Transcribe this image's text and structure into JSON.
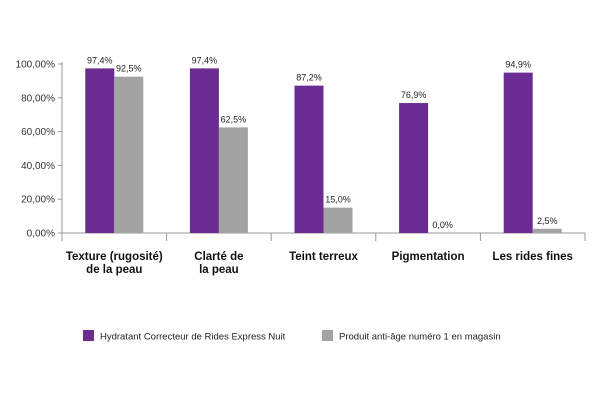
{
  "chart_data": {
    "type": "bar",
    "categories": [
      [
        "Texture (rugosité)",
        "de la peau"
      ],
      [
        "Clarté de",
        "la peau"
      ],
      [
        "Teint terreux"
      ],
      [
        "Pigmentation"
      ],
      [
        "Les rides fines"
      ]
    ],
    "series": [
      {
        "name": "Hydratant Correcteur de Rides Express Nuit",
        "color": "#6a2c91",
        "values": [
          97.4,
          97.4,
          87.2,
          76.9,
          94.9
        ],
        "labels": [
          "97,4%",
          "97,4%",
          "87,2%",
          "76,9%",
          "94,9%"
        ]
      },
      {
        "name": "Produit anti-âge numéro 1 en magasin",
        "color": "#a3a3a3",
        "values": [
          92.5,
          62.5,
          15.0,
          0.0,
          2.5
        ],
        "labels": [
          "92,5%",
          "62,5%",
          "15,0%",
          "0,0%",
          "2,5%"
        ]
      }
    ],
    "ylim": [
      0,
      100
    ],
    "yticks": [
      {
        "value": 0,
        "label": "0,00%"
      },
      {
        "value": 20,
        "label": "20,00%"
      },
      {
        "value": 40,
        "label": "40,00%"
      },
      {
        "value": 60,
        "label": "60,00%"
      },
      {
        "value": 80,
        "label": "80,00%"
      },
      {
        "value": 100,
        "label": "100,00%"
      }
    ],
    "legend_position": "bottom",
    "grid": false
  }
}
